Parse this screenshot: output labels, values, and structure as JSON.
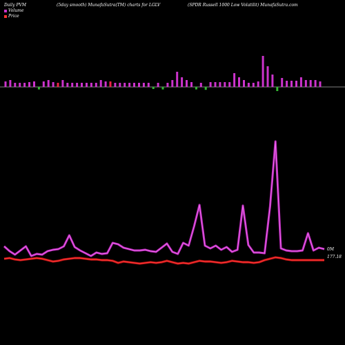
{
  "header": {
    "left": "Daily PVM",
    "middle": "(5day smooth) MunafaSutra(TM) charts for LGLV",
    "right": "(SPDR Russell 1000  Low  Volatilit) MunafaSutra.com"
  },
  "legend": {
    "volume": "Volume",
    "price": "Price",
    "volume_color": "#cc33cc",
    "price_color": "#ff3333"
  },
  "labels": {
    "volume_last": "0M",
    "price_last": "177.18"
  },
  "chart_data": {
    "type": "bar",
    "volume_bars": [
      {
        "v": 8,
        "c": "m"
      },
      {
        "v": 10,
        "c": "m"
      },
      {
        "v": 6,
        "c": "m"
      },
      {
        "v": 6,
        "c": "m"
      },
      {
        "v": 6,
        "c": "m"
      },
      {
        "v": 7,
        "c": "m"
      },
      {
        "v": 8,
        "c": "m"
      },
      {
        "v": 6,
        "c": "g"
      },
      {
        "v": 8,
        "c": "m"
      },
      {
        "v": 10,
        "c": "m"
      },
      {
        "v": 7,
        "c": "m"
      },
      {
        "v": 6,
        "c": "r"
      },
      {
        "v": 10,
        "c": "m"
      },
      {
        "v": 6,
        "c": "m"
      },
      {
        "v": 6,
        "c": "m"
      },
      {
        "v": 6,
        "c": "m"
      },
      {
        "v": 6,
        "c": "m"
      },
      {
        "v": 6,
        "c": "m"
      },
      {
        "v": 6,
        "c": "m"
      },
      {
        "v": 6,
        "c": "m"
      },
      {
        "v": 10,
        "c": "m"
      },
      {
        "v": 8,
        "c": "m"
      },
      {
        "v": 8,
        "c": "r"
      },
      {
        "v": 6,
        "c": "m"
      },
      {
        "v": 6,
        "c": "m"
      },
      {
        "v": 6,
        "c": "m"
      },
      {
        "v": 6,
        "c": "m"
      },
      {
        "v": 6,
        "c": "m"
      },
      {
        "v": 6,
        "c": "m"
      },
      {
        "v": 6,
        "c": "m"
      },
      {
        "v": 6,
        "c": "m"
      },
      {
        "v": 5,
        "c": "g"
      },
      {
        "v": 6,
        "c": "m"
      },
      {
        "v": 6,
        "c": "g"
      },
      {
        "v": 6,
        "c": "m"
      },
      {
        "v": 10,
        "c": "m"
      },
      {
        "v": 22,
        "c": "m"
      },
      {
        "v": 14,
        "c": "m"
      },
      {
        "v": 10,
        "c": "m"
      },
      {
        "v": 7,
        "c": "m"
      },
      {
        "v": 6,
        "c": "g"
      },
      {
        "v": 6,
        "c": "m"
      },
      {
        "v": 7,
        "c": "g"
      },
      {
        "v": 7,
        "c": "m"
      },
      {
        "v": 7,
        "c": "m"
      },
      {
        "v": 7,
        "c": "m"
      },
      {
        "v": 7,
        "c": "m"
      },
      {
        "v": 7,
        "c": "m"
      },
      {
        "v": 20,
        "c": "m"
      },
      {
        "v": 14,
        "c": "m"
      },
      {
        "v": 10,
        "c": "m"
      },
      {
        "v": 6,
        "c": "m"
      },
      {
        "v": 6,
        "c": "m"
      },
      {
        "v": 8,
        "c": "m"
      },
      {
        "v": 45,
        "c": "m"
      },
      {
        "v": 30,
        "c": "m"
      },
      {
        "v": 18,
        "c": "m"
      },
      {
        "v": 10,
        "c": "g"
      },
      {
        "v": 13,
        "c": "m"
      },
      {
        "v": 9,
        "c": "m"
      },
      {
        "v": 9,
        "c": "m"
      },
      {
        "v": 9,
        "c": "m"
      },
      {
        "v": 14,
        "c": "m"
      },
      {
        "v": 10,
        "c": "m"
      },
      {
        "v": 10,
        "c": "m"
      },
      {
        "v": 10,
        "c": "m"
      },
      {
        "v": 8,
        "c": "m"
      }
    ],
    "volume_line": [
      357,
      364,
      369,
      363,
      357,
      371,
      368,
      369,
      364,
      362,
      361,
      357,
      341,
      358,
      363,
      367,
      371,
      366,
      368,
      367,
      352,
      354,
      359,
      361,
      363,
      363,
      362,
      364,
      365,
      359,
      353,
      365,
      368,
      352,
      356,
      328,
      297,
      356,
      360,
      356,
      362,
      358,
      365,
      362,
      298,
      355,
      366,
      366,
      367,
      299,
      205,
      360,
      363,
      364,
      364,
      363,
      338,
      363,
      359,
      361
    ],
    "price_line": [
      375,
      374,
      376,
      377,
      376,
      375,
      374,
      375,
      377,
      379,
      378,
      376,
      375,
      374,
      374,
      375,
      376,
      376,
      377,
      377,
      378,
      381,
      379,
      380,
      381,
      382,
      381,
      380,
      381,
      380,
      378,
      380,
      382,
      381,
      382,
      380,
      378,
      379,
      379,
      380,
      381,
      380,
      378,
      379,
      380,
      380,
      381,
      380,
      377,
      375,
      373,
      374,
      376,
      377,
      377,
      377,
      377,
      377,
      377,
      377
    ]
  }
}
